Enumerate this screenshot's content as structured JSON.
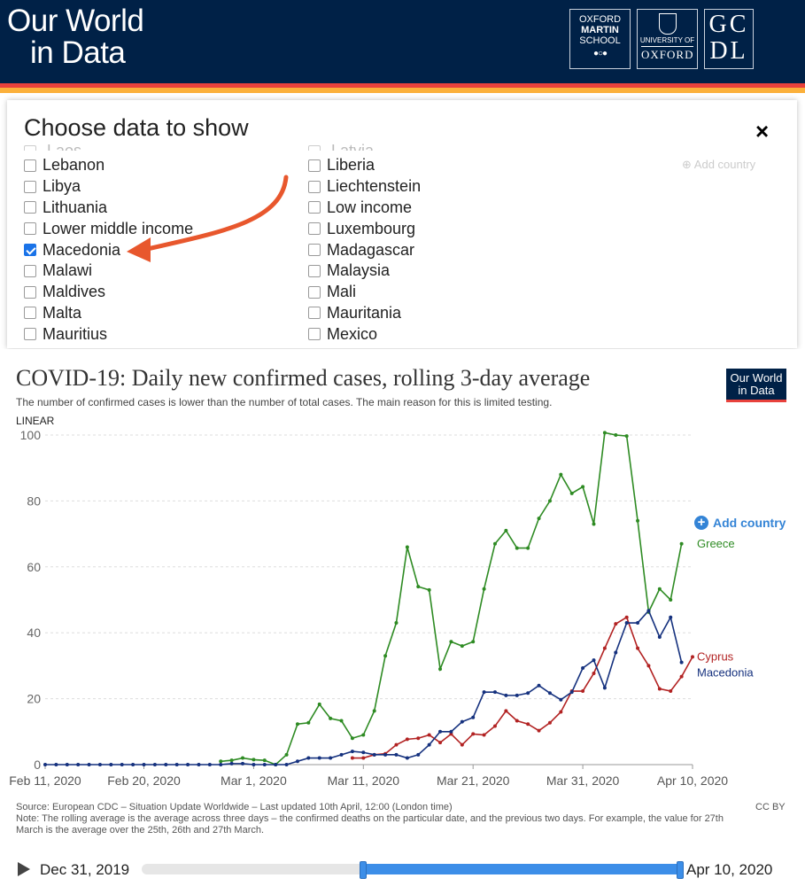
{
  "header": {
    "logo_line1": "Our World",
    "logo_line2": "in Data",
    "oms_line1": "OXFORD",
    "oms_line2": "MARTIN",
    "oms_line3": "SCHOOL",
    "oxford_small": "UNIVERSITY OF",
    "oxford_name": "OXFORD",
    "gcdl_line1": "GC",
    "gcdl_line2": "DL"
  },
  "modal": {
    "title": "Choose data to show",
    "close_label": "×",
    "left_partial": "Laos",
    "right_partial": "Latvia",
    "left_column": [
      {
        "label": "Lebanon",
        "checked": false
      },
      {
        "label": "Libya",
        "checked": false
      },
      {
        "label": "Lithuania",
        "checked": false
      },
      {
        "label": "Lower middle income",
        "checked": false
      },
      {
        "label": "Macedonia",
        "checked": true
      },
      {
        "label": "Malawi",
        "checked": false
      },
      {
        "label": "Maldives",
        "checked": false
      },
      {
        "label": "Malta",
        "checked": false
      },
      {
        "label": "Mauritius",
        "checked": false
      }
    ],
    "right_column": [
      {
        "label": "Liberia",
        "checked": false
      },
      {
        "label": "Liechtenstein",
        "checked": false
      },
      {
        "label": "Low income",
        "checked": false
      },
      {
        "label": "Luxembourg",
        "checked": false
      },
      {
        "label": "Madagascar",
        "checked": false
      },
      {
        "label": "Malaysia",
        "checked": false
      },
      {
        "label": "Mali",
        "checked": false
      },
      {
        "label": "Mauritania",
        "checked": false
      },
      {
        "label": "Mexico",
        "checked": false
      }
    ],
    "ghost_add_country": "Add country"
  },
  "annotation_color": "#e8572d",
  "chart": {
    "badge_line1": "Our World",
    "badge_line2": "in Data",
    "scale_label": "LINEAR",
    "add_country_label": "Add country",
    "source_line1": "Source: European CDC – Situation Update Worldwide – Last updated 10th April, 12:00 (London time)",
    "source_line2": "Note: The rolling average is the average across three days – the confirmed deaths on the particular date, and the previous two days. For example, the value for 27th March is the average over the 25th, 26th and 27th March.",
    "license": "CC BY"
  },
  "timeline": {
    "start_label": "Dec 31, 2019",
    "end_label": "Apr 10, 2020",
    "selected_start_fraction": 0.41,
    "selected_end_fraction": 1.0
  },
  "chart_data": {
    "type": "line",
    "title": "COVID-19: Daily new confirmed cases, rolling 3-day average",
    "subtitle": "The number of confirmed cases is lower than the number of total cases. The main reason for this is limited testing.",
    "xlabel": "",
    "ylabel": "",
    "ylim": [
      0,
      100
    ],
    "yticks": [
      0,
      20,
      40,
      60,
      80,
      100
    ],
    "x_start": "Feb 11, 2020",
    "x_end": "Apr 10, 2020",
    "xticks": [
      {
        "label": "Feb 11, 2020",
        "day": 0
      },
      {
        "label": "Feb 20, 2020",
        "day": 9
      },
      {
        "label": "Mar 1, 2020",
        "day": 19
      },
      {
        "label": "Mar 11, 2020",
        "day": 29
      },
      {
        "label": "Mar 21, 2020",
        "day": 39
      },
      {
        "label": "Mar 31, 2020",
        "day": 49
      },
      {
        "label": "Apr 10, 2020",
        "day": 59
      }
    ],
    "grid": "horizontal dashed",
    "legend": "end-of-line labels",
    "series": [
      {
        "name": "Greece",
        "color": "#2e8b23",
        "start_day": 16,
        "values": [
          1,
          1.3,
          2,
          1.5,
          1.3,
          0,
          3,
          12.3,
          12.7,
          18.3,
          14,
          13.3,
          8,
          9,
          16.3,
          33,
          43,
          66,
          54,
          53,
          29,
          37.3,
          36,
          37.3,
          53.3,
          67,
          71,
          65.7,
          65.7,
          74.7,
          80,
          88,
          82.3,
          84.3,
          73,
          100.7,
          100,
          99.7,
          74,
          46.3,
          53.3,
          50,
          67
        ]
      },
      {
        "name": "Cyprus",
        "color": "#b22222",
        "start_day": 28,
        "values": [
          2,
          2,
          3,
          3.3,
          6,
          7.7,
          8,
          9,
          6.7,
          9.3,
          6,
          9.3,
          9,
          11.7,
          16.3,
          13.3,
          12.3,
          10.3,
          12.7,
          16,
          22.3,
          22.3,
          27.7,
          35.3,
          42.7,
          44.7,
          35.3,
          30,
          23,
          22.3,
          26.7,
          32.7
        ]
      },
      {
        "name": "Macedonia",
        "color": "#15317e",
        "start_day": 0,
        "values": [
          0,
          0,
          0,
          0,
          0,
          0,
          0,
          0,
          0,
          0,
          0,
          0,
          0,
          0,
          0,
          0,
          0,
          0.3,
          0.3,
          0,
          0,
          0,
          0,
          1,
          2,
          2,
          2,
          3,
          4,
          3.7,
          3,
          3,
          3,
          2,
          3,
          6,
          10,
          10,
          13,
          14.3,
          22,
          22,
          21,
          21,
          21.7,
          24,
          21.7,
          19.7,
          22,
          29.3,
          31.7,
          23.3,
          34,
          43,
          43,
          46.7,
          38.7,
          44.7,
          31
        ]
      }
    ]
  }
}
